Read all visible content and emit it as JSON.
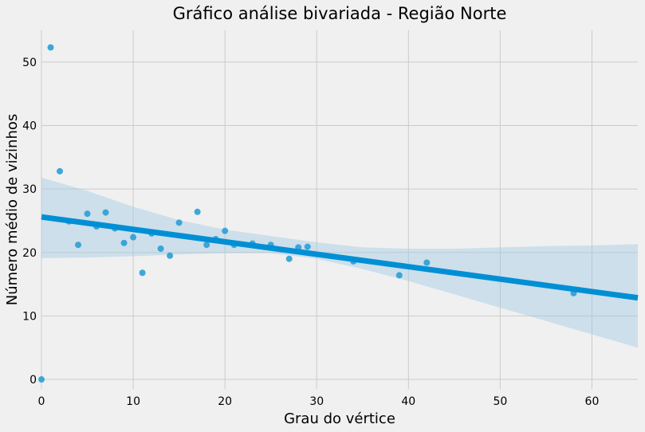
{
  "chart_data": {
    "type": "scatter",
    "title": "Gráfico análise bivariada - Região Norte",
    "xlabel": "Grau do vértice",
    "ylabel": "Número médio de vizinhos",
    "xlim": [
      0,
      65
    ],
    "ylim": [
      -1.5,
      55
    ],
    "xticks": [
      0,
      10,
      20,
      30,
      40,
      50,
      60
    ],
    "yticks": [
      0,
      10,
      20,
      30,
      40,
      50
    ],
    "grid": true,
    "colors": {
      "points": "#2a9fd6",
      "line": "#008fd5",
      "band": "#9ec8e3",
      "background": "#f0f0f0",
      "grid": "#cbcbcb"
    },
    "points": [
      {
        "x": 0,
        "y": 0
      },
      {
        "x": 1,
        "y": 52.3
      },
      {
        "x": 2,
        "y": 32.8
      },
      {
        "x": 3,
        "y": 24.9
      },
      {
        "x": 4,
        "y": 21.2
      },
      {
        "x": 5,
        "y": 26.1
      },
      {
        "x": 6,
        "y": 24.1
      },
      {
        "x": 7,
        "y": 26.3
      },
      {
        "x": 8,
        "y": 23.8
      },
      {
        "x": 9,
        "y": 21.5
      },
      {
        "x": 10,
        "y": 22.4
      },
      {
        "x": 11,
        "y": 16.8
      },
      {
        "x": 12,
        "y": 23.0
      },
      {
        "x": 13,
        "y": 20.6
      },
      {
        "x": 14,
        "y": 19.5
      },
      {
        "x": 15,
        "y": 24.7
      },
      {
        "x": 17,
        "y": 26.4
      },
      {
        "x": 18,
        "y": 21.2
      },
      {
        "x": 19,
        "y": 22.1
      },
      {
        "x": 20,
        "y": 23.4
      },
      {
        "x": 21,
        "y": 21.2
      },
      {
        "x": 23,
        "y": 21.4
      },
      {
        "x": 25,
        "y": 21.2
      },
      {
        "x": 27,
        "y": 19.0
      },
      {
        "x": 28,
        "y": 20.8
      },
      {
        "x": 29,
        "y": 20.9
      },
      {
        "x": 34,
        "y": 18.6
      },
      {
        "x": 39,
        "y": 16.4
      },
      {
        "x": 42,
        "y": 18.4
      },
      {
        "x": 58,
        "y": 13.6
      }
    ],
    "regression": {
      "slope": -0.196,
      "intercept": 25.6
    },
    "confidence_band": [
      {
        "x": 0,
        "lower": 19.1,
        "upper": 31.8
      },
      {
        "x": 5,
        "lower": 19.2,
        "upper": 29.7
      },
      {
        "x": 10,
        "lower": 19.4,
        "upper": 27.2
      },
      {
        "x": 15,
        "lower": 19.7,
        "upper": 25.1
      },
      {
        "x": 20,
        "lower": 19.9,
        "upper": 23.6
      },
      {
        "x": 25,
        "lower": 19.9,
        "upper": 22.6
      },
      {
        "x": 30,
        "lower": 19.0,
        "upper": 21.6
      },
      {
        "x": 35,
        "lower": 17.4,
        "upper": 20.8
      },
      {
        "x": 40,
        "lower": 15.5,
        "upper": 20.6
      },
      {
        "x": 45,
        "lower": 13.4,
        "upper": 20.6
      },
      {
        "x": 50,
        "lower": 11.3,
        "upper": 20.8
      },
      {
        "x": 55,
        "lower": 9.2,
        "upper": 21.0
      },
      {
        "x": 60,
        "lower": 7.1,
        "upper": 21.1
      },
      {
        "x": 65,
        "lower": 5.0,
        "upper": 21.3
      }
    ]
  }
}
